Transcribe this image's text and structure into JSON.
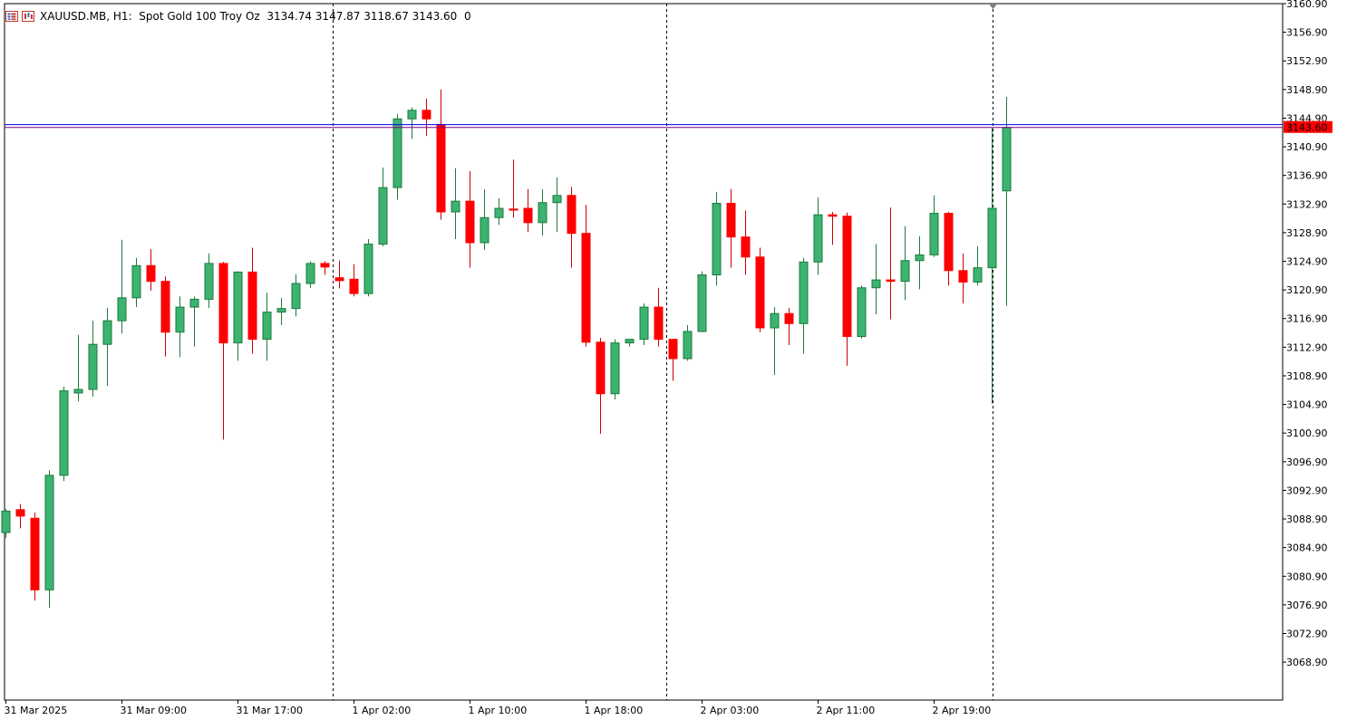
{
  "header": {
    "symbol": "XAUUSD.MB",
    "timeframe": "H1:",
    "description": "Spot Gold 100 Troy Oz",
    "ohlc": "3134.74 3147.87 3118.67 3143.60",
    "volume": "0",
    "icons": [
      "symbol-list-icon",
      "chart-window-icon"
    ]
  },
  "colors": {
    "bull": "#3cb371",
    "bear": "#ff0000",
    "ask_line": "#0000ff",
    "bid_line": "#800080",
    "price_tag": "#ff0000"
  },
  "chart_data": {
    "type": "candlestick",
    "symbol": "XAUUSD.MB",
    "timeframe": "H1",
    "ylim": [
      3063.6,
      3160.9
    ],
    "y_ticks": [
      "3160.90",
      "3156.90",
      "3152.90",
      "3148.90",
      "3144.90",
      "3140.90",
      "3136.90",
      "3132.90",
      "3128.90",
      "3124.90",
      "3120.90",
      "3116.90",
      "3112.90",
      "3108.90",
      "3104.90",
      "3100.90",
      "3096.90",
      "3092.90",
      "3088.90",
      "3084.90",
      "3080.90",
      "3076.90",
      "3072.90",
      "3068.90"
    ],
    "x_labels": [
      {
        "label": "31 Mar 2025",
        "bar": 0
      },
      {
        "label": "31 Mar 09:00",
        "bar": 8
      },
      {
        "label": "31 Mar 17:00",
        "bar": 16
      },
      {
        "label": "1 Apr 02:00",
        "bar": 24
      },
      {
        "label": "1 Apr 10:00",
        "bar": 32
      },
      {
        "label": "1 Apr 18:00",
        "bar": 40
      },
      {
        "label": "2 Apr 03:00",
        "bar": 48
      },
      {
        "label": "2 Apr 11:00",
        "bar": 56
      },
      {
        "label": "2 Apr 19:00",
        "bar": 64
      }
    ],
    "separators_after_bar": [
      22.5,
      45.5,
      68
    ],
    "current_price": "3143.60",
    "bid": 3143.6,
    "ask": 3144.0,
    "candles": [
      {
        "o": 3087.0,
        "h": 3090.3,
        "l": 3086.2,
        "c": 3090.0
      },
      {
        "o": 3090.2,
        "h": 3091.0,
        "l": 3087.6,
        "c": 3089.3
      },
      {
        "o": 3089.0,
        "h": 3089.8,
        "l": 3077.5,
        "c": 3079.0
      },
      {
        "o": 3079.0,
        "h": 3095.7,
        "l": 3076.5,
        "c": 3095.0
      },
      {
        "o": 3095.0,
        "h": 3107.4,
        "l": 3094.2,
        "c": 3106.8
      },
      {
        "o": 3106.5,
        "h": 3114.6,
        "l": 3105.3,
        "c": 3107.0
      },
      {
        "o": 3107.0,
        "h": 3116.6,
        "l": 3106.0,
        "c": 3113.3
      },
      {
        "o": 3113.3,
        "h": 3118.4,
        "l": 3107.5,
        "c": 3116.6
      },
      {
        "o": 3116.6,
        "h": 3127.9,
        "l": 3114.8,
        "c": 3119.8
      },
      {
        "o": 3119.8,
        "h": 3125.4,
        "l": 3118.5,
        "c": 3124.3
      },
      {
        "o": 3124.3,
        "h": 3126.6,
        "l": 3120.8,
        "c": 3122.1
      },
      {
        "o": 3122.1,
        "h": 3122.8,
        "l": 3111.6,
        "c": 3115.0
      },
      {
        "o": 3115.0,
        "h": 3120.0,
        "l": 3111.5,
        "c": 3118.5
      },
      {
        "o": 3118.5,
        "h": 3120.0,
        "l": 3113.0,
        "c": 3119.6
      },
      {
        "o": 3119.6,
        "h": 3126.0,
        "l": 3118.4,
        "c": 3124.6
      },
      {
        "o": 3124.6,
        "h": 3124.8,
        "l": 3100.0,
        "c": 3113.5
      },
      {
        "o": 3113.5,
        "h": 3123.5,
        "l": 3111.0,
        "c": 3123.4
      },
      {
        "o": 3123.4,
        "h": 3126.8,
        "l": 3112.0,
        "c": 3114.0
      },
      {
        "o": 3114.0,
        "h": 3120.5,
        "l": 3111.0,
        "c": 3117.8
      },
      {
        "o": 3117.8,
        "h": 3119.8,
        "l": 3116.0,
        "c": 3118.3
      },
      {
        "o": 3118.3,
        "h": 3123.1,
        "l": 3117.2,
        "c": 3121.8
      },
      {
        "o": 3121.8,
        "h": 3124.9,
        "l": 3121.2,
        "c": 3124.6
      },
      {
        "o": 3124.6,
        "h": 3124.9,
        "l": 3123.0,
        "c": 3124.1
      },
      {
        "o": 3122.6,
        "h": 3125.0,
        "l": 3121.1,
        "c": 3122.2
      },
      {
        "o": 3122.4,
        "h": 3124.5,
        "l": 3120.0,
        "c": 3120.4
      },
      {
        "o": 3120.4,
        "h": 3128.0,
        "l": 3120.0,
        "c": 3127.3
      },
      {
        "o": 3127.3,
        "h": 3138.0,
        "l": 3127.0,
        "c": 3135.2
      },
      {
        "o": 3135.2,
        "h": 3145.5,
        "l": 3133.5,
        "c": 3144.8
      },
      {
        "o": 3144.8,
        "h": 3146.4,
        "l": 3142.0,
        "c": 3146.0
      },
      {
        "o": 3146.0,
        "h": 3147.6,
        "l": 3142.4,
        "c": 3144.8
      },
      {
        "o": 3144.0,
        "h": 3148.9,
        "l": 3130.7,
        "c": 3131.8
      },
      {
        "o": 3131.8,
        "h": 3137.9,
        "l": 3128.0,
        "c": 3133.3
      },
      {
        "o": 3133.3,
        "h": 3137.5,
        "l": 3124.0,
        "c": 3127.5
      },
      {
        "o": 3127.5,
        "h": 3135.0,
        "l": 3126.5,
        "c": 3131.0
      },
      {
        "o": 3131.0,
        "h": 3133.7,
        "l": 3130.0,
        "c": 3132.3
      },
      {
        "o": 3132.2,
        "h": 3139.1,
        "l": 3131.0,
        "c": 3132.1
      },
      {
        "o": 3132.3,
        "h": 3135.0,
        "l": 3129.0,
        "c": 3130.3
      },
      {
        "o": 3130.3,
        "h": 3135.0,
        "l": 3128.5,
        "c": 3133.1
      },
      {
        "o": 3133.1,
        "h": 3136.6,
        "l": 3129.0,
        "c": 3134.1
      },
      {
        "o": 3134.1,
        "h": 3135.3,
        "l": 3124.0,
        "c": 3128.8
      },
      {
        "o": 3128.8,
        "h": 3132.8,
        "l": 3113.0,
        "c": 3113.6
      },
      {
        "o": 3113.6,
        "h": 3114.2,
        "l": 3100.8,
        "c": 3106.4
      },
      {
        "o": 3106.4,
        "h": 3114.0,
        "l": 3105.6,
        "c": 3113.5
      },
      {
        "o": 3113.5,
        "h": 3114.0,
        "l": 3113.0,
        "c": 3114.0
      },
      {
        "o": 3114.0,
        "h": 3119.0,
        "l": 3113.2,
        "c": 3118.5
      },
      {
        "o": 3118.5,
        "h": 3121.2,
        "l": 3113.0,
        "c": 3114.0
      },
      {
        "o": 3114.0,
        "h": 3114.0,
        "l": 3108.2,
        "c": 3111.3
      },
      {
        "o": 3111.3,
        "h": 3116.0,
        "l": 3111.0,
        "c": 3115.1
      },
      {
        "o": 3115.1,
        "h": 3123.5,
        "l": 3115.0,
        "c": 3123.0
      },
      {
        "o": 3123.0,
        "h": 3134.6,
        "l": 3121.5,
        "c": 3133.0
      },
      {
        "o": 3133.0,
        "h": 3135.0,
        "l": 3124.0,
        "c": 3128.3
      },
      {
        "o": 3128.3,
        "h": 3132.0,
        "l": 3123.0,
        "c": 3125.5
      },
      {
        "o": 3125.5,
        "h": 3126.8,
        "l": 3115.0,
        "c": 3115.6
      },
      {
        "o": 3115.6,
        "h": 3118.5,
        "l": 3109.0,
        "c": 3117.6
      },
      {
        "o": 3117.6,
        "h": 3118.4,
        "l": 3113.2,
        "c": 3116.2
      },
      {
        "o": 3116.2,
        "h": 3125.4,
        "l": 3112.0,
        "c": 3124.8
      },
      {
        "o": 3124.8,
        "h": 3133.8,
        "l": 3123.0,
        "c": 3131.4
      },
      {
        "o": 3131.4,
        "h": 3131.8,
        "l": 3127.2,
        "c": 3131.2
      },
      {
        "o": 3131.2,
        "h": 3131.7,
        "l": 3110.3,
        "c": 3114.4
      },
      {
        "o": 3114.4,
        "h": 3121.5,
        "l": 3114.1,
        "c": 3121.2
      },
      {
        "o": 3121.2,
        "h": 3127.3,
        "l": 3117.5,
        "c": 3122.3
      },
      {
        "o": 3122.3,
        "h": 3132.4,
        "l": 3116.8,
        "c": 3122.1
      },
      {
        "o": 3122.1,
        "h": 3129.8,
        "l": 3119.5,
        "c": 3125.0
      },
      {
        "o": 3125.0,
        "h": 3128.4,
        "l": 3121.0,
        "c": 3125.8
      },
      {
        "o": 3125.8,
        "h": 3134.1,
        "l": 3125.5,
        "c": 3131.6
      },
      {
        "o": 3131.6,
        "h": 3131.8,
        "l": 3121.5,
        "c": 3123.6
      },
      {
        "o": 3123.6,
        "h": 3126.0,
        "l": 3119.0,
        "c": 3122.0
      },
      {
        "o": 3122.0,
        "h": 3127.0,
        "l": 3121.5,
        "c": 3124.0
      },
      {
        "o": 3124.0,
        "h": 3143.6,
        "l": 3105.0,
        "c": 3132.3
      },
      {
        "o": 3134.74,
        "h": 3147.87,
        "l": 3118.67,
        "c": 3143.6
      }
    ]
  }
}
